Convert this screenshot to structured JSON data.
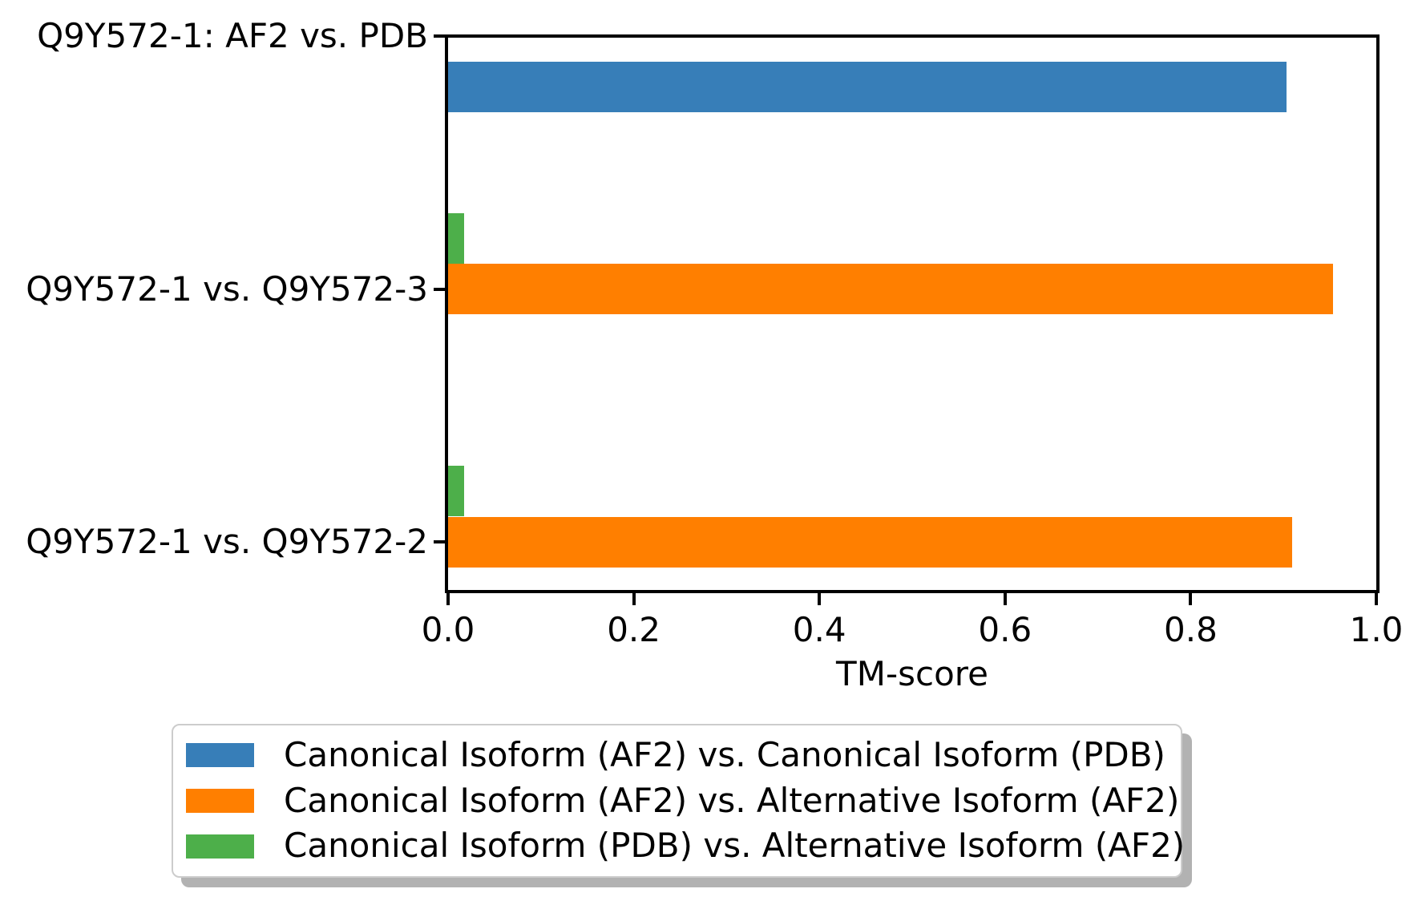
{
  "chart_data": {
    "type": "bar",
    "orientation": "horizontal",
    "title": "",
    "xlabel": "TM-score",
    "ylabel": "",
    "xlim": [
      0.0,
      1.0
    ],
    "xticks": [
      0.0,
      0.2,
      0.4,
      0.6,
      0.8,
      1.0
    ],
    "grid": false,
    "legend_position": "bottom-outside",
    "categories": [
      "Q9Y572-1: AF2 vs. PDB",
      "Q9Y572-1 vs. Q9Y572-3",
      "Q9Y572-1 vs. Q9Y572-2"
    ],
    "series": [
      {
        "name": "Canonical Isoform (AF2) vs. Canonical Isoform (PDB)",
        "color": "#377eb8",
        "values": [
          0.903,
          null,
          null
        ]
      },
      {
        "name": "Canonical Isoform (AF2) vs. Alternative Isoform (AF2)",
        "color": "#ff7f00",
        "values": [
          null,
          0.953,
          0.909
        ]
      },
      {
        "name": "Canonical Isoform (PDB) vs. Alternative Isoform (AF2)",
        "color": "#4daf4a",
        "values": [
          null,
          0.017,
          0.017
        ]
      }
    ]
  },
  "colors": {
    "axis": "#000000",
    "legend_border": "#cccccc",
    "background": "#ffffff"
  }
}
